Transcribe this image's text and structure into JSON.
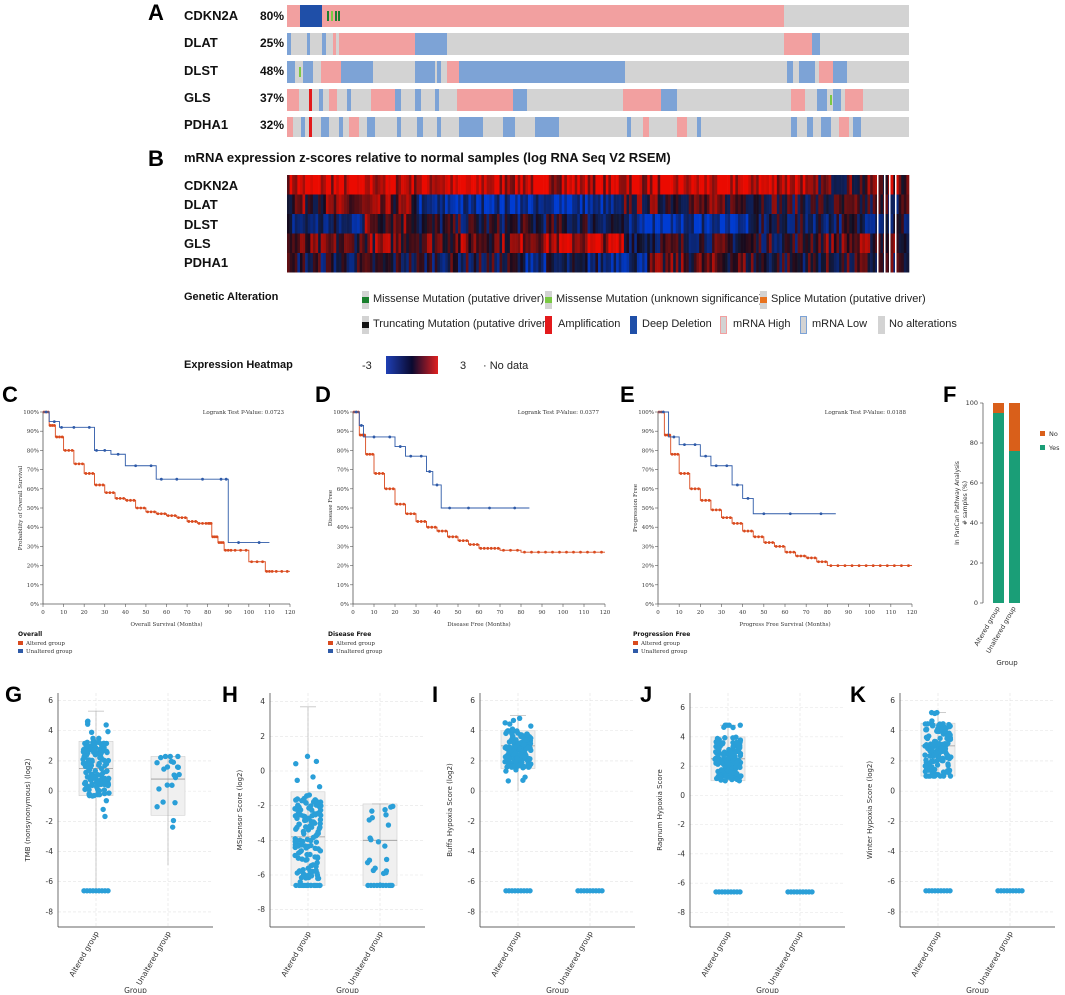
{
  "panels": {
    "A": "A",
    "B": "B",
    "C": "C",
    "D": "D",
    "E": "E",
    "F": "F",
    "G": "G",
    "H": "H",
    "I": "I",
    "J": "J",
    "K": "K"
  },
  "oncoprint": {
    "genes": [
      {
        "name": "CDKN2A",
        "pct": "80%"
      },
      {
        "name": "DLAT",
        "pct": "25%"
      },
      {
        "name": "DLST",
        "pct": "48%"
      },
      {
        "name": "GLS",
        "pct": "37%"
      },
      {
        "name": "PDHA1",
        "pct": "32%"
      }
    ]
  },
  "heatmap": {
    "title": "mRNA expression z-scores relative to normal samples (log RNA Seq V2 RSEM)",
    "genes": [
      "CDKN2A",
      "DLAT",
      "DLST",
      "GLS",
      "PDHA1"
    ]
  },
  "legend": {
    "genetic_title": "Genetic Alteration",
    "items": [
      {
        "label": "Missense Mutation (putative driver)",
        "color": "#1a7f2e"
      },
      {
        "label": "Missense Mutation (unknown significance)",
        "color": "#7ac943"
      },
      {
        "label": "Splice Mutation (putative driver)",
        "color": "#e8731f"
      },
      {
        "label": "Truncating Mutation (putative driver)",
        "color": "#111111"
      },
      {
        "label": "Amplification",
        "color": "#e31a1c"
      },
      {
        "label": "Deep Deletion",
        "color": "#1f4fa8"
      },
      {
        "label": "mRNA High",
        "color": "#f2a0a0"
      },
      {
        "label": "mRNA Low",
        "color": "#7da3d6"
      },
      {
        "label": "No alterations",
        "color": "#d3d3d3"
      }
    ],
    "expr_title": "Expression Heatmap",
    "expr_min": "-3",
    "expr_max": "3",
    "no_data": "No data"
  },
  "chart_data": [
    {
      "id": "C",
      "type": "line",
      "title": "Logrank Test P-Value: 0.0723",
      "xlabel": "Overall Survival (Months)",
      "ylabel": "Probability of Overall Survival",
      "xlim": [
        0,
        120
      ],
      "ylim": [
        0,
        100
      ],
      "xticks": [
        0,
        10,
        20,
        30,
        40,
        50,
        60,
        70,
        80,
        90,
        100,
        110,
        120
      ],
      "yticks": [
        "0%",
        "10%",
        "20%",
        "30%",
        "40%",
        "50%",
        "60%",
        "70%",
        "80%",
        "90%",
        "100%"
      ],
      "legend_title": "Overall",
      "series": [
        {
          "name": "Altered group",
          "color": "#d94a1e",
          "x": [
            0,
            3,
            6,
            10,
            15,
            20,
            25,
            30,
            35,
            40,
            45,
            50,
            55,
            60,
            65,
            70,
            75,
            80,
            82,
            85,
            88,
            92,
            100,
            108,
            112,
            120
          ],
          "y": [
            100,
            93,
            87,
            80,
            73,
            68,
            62,
            58,
            55,
            54,
            50,
            48,
            47,
            46,
            45,
            43,
            42,
            42,
            35,
            32,
            28,
            28,
            22,
            17,
            17,
            17
          ]
        },
        {
          "name": "Unaltered group",
          "color": "#2e5aa8",
          "x": [
            0,
            3,
            8,
            10,
            20,
            25,
            27,
            33,
            40,
            50,
            55,
            60,
            70,
            85,
            88,
            90,
            100,
            110
          ],
          "y": [
            100,
            95,
            92,
            92,
            92,
            80,
            80,
            78,
            72,
            72,
            65,
            65,
            65,
            65,
            65,
            32,
            32,
            32
          ]
        }
      ]
    },
    {
      "id": "D",
      "type": "line",
      "title": "Logrank Test P-Value: 0.0377",
      "xlabel": "Disease Free (Months)",
      "ylabel": "Disease Free",
      "xlim": [
        0,
        120
      ],
      "ylim": [
        0,
        100
      ],
      "xticks": [
        0,
        10,
        20,
        30,
        40,
        50,
        60,
        70,
        80,
        90,
        100,
        110,
        120
      ],
      "yticks": [
        "0%",
        "10%",
        "20%",
        "30%",
        "40%",
        "50%",
        "60%",
        "70%",
        "80%",
        "90%",
        "100%"
      ],
      "legend_title": "Disease Free",
      "series": [
        {
          "name": "Altered group",
          "color": "#d94a1e",
          "x": [
            0,
            3,
            6,
            10,
            15,
            20,
            25,
            30,
            35,
            40,
            45,
            50,
            55,
            60,
            65,
            70,
            80,
            90,
            100,
            110,
            120
          ],
          "y": [
            100,
            88,
            78,
            68,
            60,
            52,
            47,
            43,
            40,
            38,
            35,
            33,
            31,
            29,
            29,
            28,
            27,
            27,
            27,
            27,
            27
          ]
        },
        {
          "name": "Unaltered group",
          "color": "#2e5aa8",
          "x": [
            0,
            3,
            5,
            15,
            20,
            25,
            30,
            35,
            38,
            42,
            50,
            60,
            70,
            84
          ],
          "y": [
            100,
            93,
            87,
            87,
            82,
            77,
            77,
            69,
            62,
            50,
            50,
            50,
            50,
            50
          ]
        }
      ]
    },
    {
      "id": "E",
      "type": "line",
      "title": "Logrank Test P-Value: 0.0188",
      "xlabel": "Progress Free Survival (Months)",
      "ylabel": "Progression Free",
      "xlim": [
        0,
        120
      ],
      "ylim": [
        0,
        100
      ],
      "xticks": [
        0,
        10,
        20,
        30,
        40,
        50,
        60,
        70,
        80,
        90,
        100,
        110,
        120
      ],
      "yticks": [
        "0%",
        "10%",
        "20%",
        "30%",
        "40%",
        "50%",
        "60%",
        "70%",
        "80%",
        "90%",
        "100%"
      ],
      "legend_title": "Progression Free",
      "series": [
        {
          "name": "Altered group",
          "color": "#d94a1e",
          "x": [
            0,
            3,
            6,
            10,
            15,
            20,
            25,
            30,
            35,
            40,
            45,
            50,
            55,
            60,
            65,
            70,
            75,
            80,
            90,
            100,
            110,
            120
          ],
          "y": [
            100,
            88,
            78,
            68,
            60,
            54,
            49,
            45,
            42,
            38,
            35,
            32,
            30,
            27,
            25,
            24,
            22,
            20,
            20,
            20,
            20,
            20
          ]
        },
        {
          "name": "Unaltered group",
          "color": "#2e5aa8",
          "x": [
            0,
            5,
            10,
            15,
            20,
            25,
            30,
            35,
            40,
            45,
            55,
            70,
            84
          ],
          "y": [
            100,
            87,
            83,
            83,
            77,
            72,
            72,
            62,
            55,
            47,
            47,
            47,
            47
          ]
        }
      ]
    },
    {
      "id": "F",
      "type": "bar",
      "stacked": true,
      "categories": [
        "Altered group",
        "Unaltered group"
      ],
      "series": [
        {
          "name": "Yes",
          "color": "#1a9e77",
          "values": [
            95,
            76
          ]
        },
        {
          "name": "No",
          "color": "#d95f1a",
          "values": [
            5,
            24
          ]
        }
      ],
      "ylabel": "In PanCan Pathway Analysis\n# samples (%)",
      "xlabel": "Group",
      "ylim": [
        0,
        100
      ],
      "yticks": [
        0,
        20,
        40,
        60,
        80,
        100
      ]
    },
    {
      "id": "G",
      "type": "scatter",
      "ylabel": "TMB (nonsynonymous) (log2)",
      "xlabel": "Group",
      "categories": [
        "Altered group",
        "Unaltered group"
      ],
      "ylim": [
        -9,
        6.5
      ],
      "yticks": [
        -8,
        -6,
        -4,
        -2,
        0,
        2,
        4,
        6
      ],
      "groups": [
        {
          "median": 1.5,
          "q1": -0.3,
          "q3": 3.3,
          "min": -6.6,
          "max": 5.3,
          "floor": -6.6
        },
        {
          "median": 0.8,
          "q1": -1.6,
          "q3": 2.3,
          "min": -4.9,
          "max": 2.3,
          "floor": null
        }
      ]
    },
    {
      "id": "H",
      "type": "scatter",
      "ylabel": "MSIsensor Score (log2)",
      "xlabel": "Group",
      "categories": [
        "Altered group",
        "Unaltered group"
      ],
      "ylim": [
        -9,
        4.5
      ],
      "yticks": [
        -8,
        -6,
        -4,
        -2,
        0,
        2,
        4
      ],
      "groups": [
        {
          "median": -3.8,
          "q1": -6.6,
          "q3": -1.2,
          "min": -6.6,
          "max": 3.7,
          "floor": -6.6
        },
        {
          "median": -4.0,
          "q1": -6.6,
          "q3": -1.9,
          "min": -6.6,
          "max": -1.9,
          "floor": -6.6
        }
      ]
    },
    {
      "id": "I",
      "type": "scatter",
      "ylabel": "Buffa Hypoxia Score (log2)",
      "xlabel": "Group",
      "categories": [
        "Altered group",
        "Unaltered group"
      ],
      "ylim": [
        -9,
        6.5
      ],
      "yticks": [
        -8,
        -6,
        -4,
        -2,
        0,
        2,
        4,
        6
      ],
      "groups": [
        {
          "median": 3.0,
          "q1": 1.5,
          "q3": 4.0,
          "min": 0,
          "max": 5.0,
          "floor": -6.6
        },
        {
          "median": null,
          "q1": null,
          "q3": null,
          "min": null,
          "max": null,
          "floor": -6.6
        }
      ]
    },
    {
      "id": "J",
      "type": "scatter",
      "ylabel": "Ragnum Hypoxia Score",
      "xlabel": "Group",
      "categories": [
        "Altered group",
        "Unaltered group"
      ],
      "ylim": [
        -9,
        7
      ],
      "yticks": [
        -8,
        -6,
        -4,
        -2,
        0,
        2,
        4,
        6
      ],
      "groups": [
        {
          "median": 2.5,
          "q1": 1.0,
          "q3": 4.0,
          "min": 1.0,
          "max": 4.8,
          "floor": -6.6
        },
        {
          "median": null,
          "q1": null,
          "q3": null,
          "min": null,
          "max": null,
          "floor": -6.6
        }
      ]
    },
    {
      "id": "K",
      "type": "scatter",
      "ylabel": "Winter Hypoxia Score (log2)",
      "xlabel": "Group",
      "categories": [
        "Altered group",
        "Unaltered group"
      ],
      "ylim": [
        -9,
        6.5
      ],
      "yticks": [
        -8,
        -6,
        -4,
        -2,
        0,
        2,
        4,
        6
      ],
      "groups": [
        {
          "median": 3.0,
          "q1": 1.0,
          "q3": 4.5,
          "min": 1.0,
          "max": 5.2,
          "floor": -6.6
        },
        {
          "median": null,
          "q1": null,
          "q3": null,
          "min": null,
          "max": null,
          "floor": -6.6
        }
      ]
    }
  ]
}
